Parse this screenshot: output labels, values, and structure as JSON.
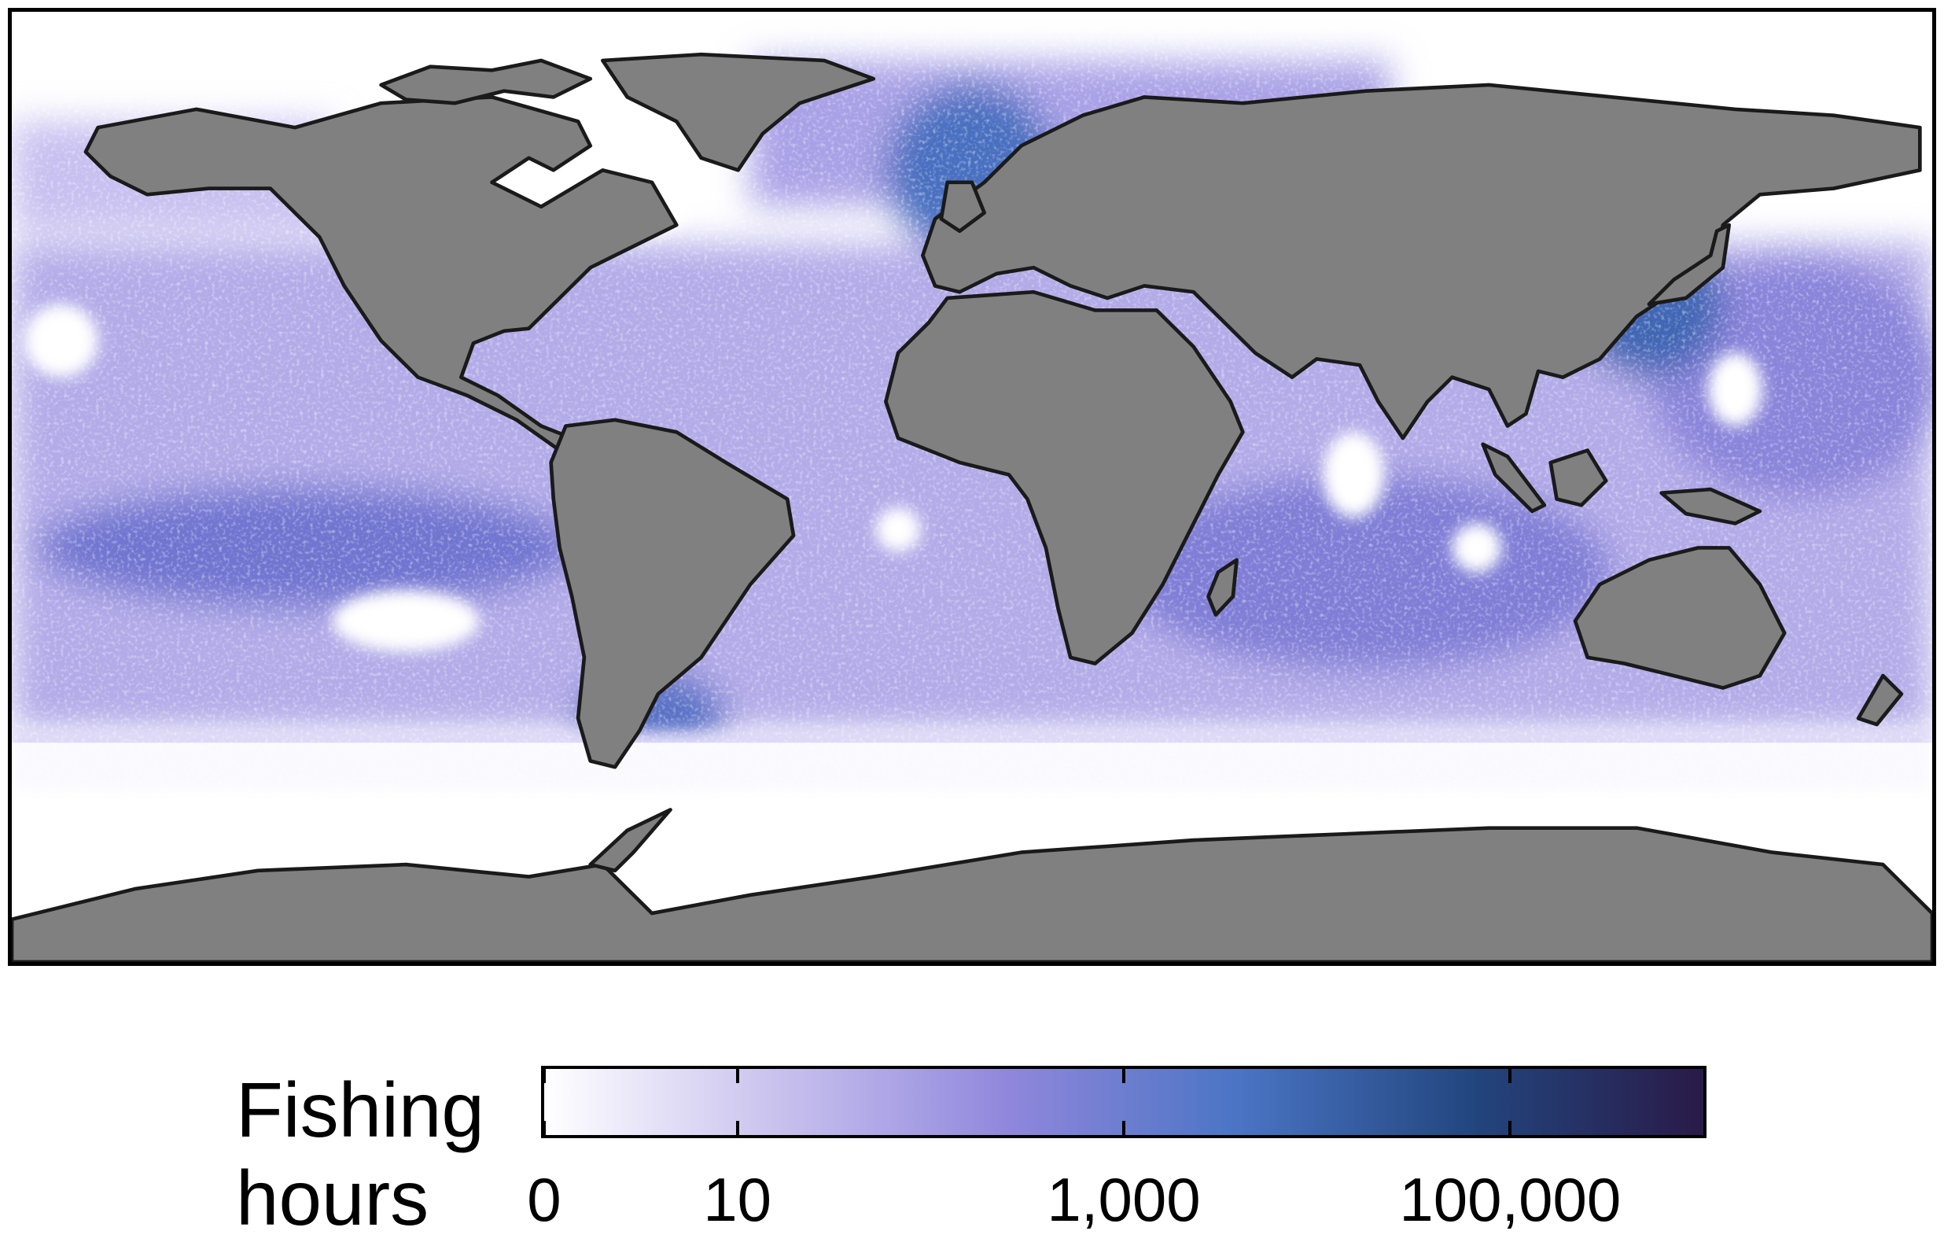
{
  "map": {
    "type": "world-heatmap",
    "projection": "equirectangular",
    "land_color": "#808080",
    "ocean_background": "#ffffff"
  },
  "legend": {
    "title_line1": "Fishing",
    "title_line2": "hours",
    "scale": "log",
    "ticks": [
      {
        "value": 0,
        "label": "0"
      },
      {
        "value": 10,
        "label": "10"
      },
      {
        "value": 1000,
        "label": "1,000"
      },
      {
        "value": 100000,
        "label": "100,000"
      }
    ],
    "max_value": 1000000,
    "colors": [
      "#ffffff",
      "#c9c2ee",
      "#9087dc",
      "#4a74c4",
      "#22467e",
      "#2a1a48"
    ]
  }
}
